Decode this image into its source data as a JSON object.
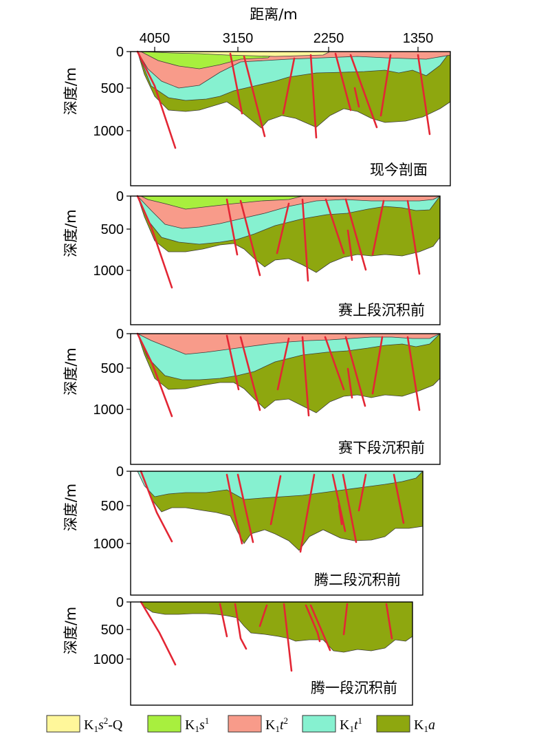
{
  "x_axis": {
    "title": "距离/m",
    "ticks": [
      "4050",
      "3150",
      "2250",
      "1350"
    ]
  },
  "y_axis_title": "深度/m",
  "depth_ticks": [
    "0",
    "500",
    "1000"
  ],
  "panels": [
    {
      "id": "present",
      "label": "现今剖面"
    },
    {
      "id": "before-upper-saihantala",
      "label": "赛上段沉积前"
    },
    {
      "id": "before-lower-saihantala",
      "label": "赛下段沉积前"
    },
    {
      "id": "before-teng2",
      "label": "腾二段沉积前"
    },
    {
      "id": "before-teng1",
      "label": "腾一段沉积前"
    }
  ],
  "legend": [
    {
      "unit": "K1s2-Q",
      "label_parts": [
        "K",
        "1",
        "s",
        "2",
        "-Q"
      ],
      "color": "#fff79a"
    },
    {
      "unit": "K1s1",
      "label_parts": [
        "K",
        "1",
        "s",
        "1",
        ""
      ],
      "color": "#a8ef3e"
    },
    {
      "unit": "K1t2",
      "label_parts": [
        "K",
        "1",
        "t",
        "2",
        ""
      ],
      "color": "#f89b8a"
    },
    {
      "unit": "K1t1",
      "label_parts": [
        "K",
        "1",
        "t",
        "1",
        ""
      ],
      "color": "#86f1d0"
    },
    {
      "unit": "K1a",
      "label_parts": [
        "K",
        "1",
        "a",
        "",
        ""
      ],
      "color": "#8ea70f"
    }
  ],
  "fault_color": "#e32634"
}
